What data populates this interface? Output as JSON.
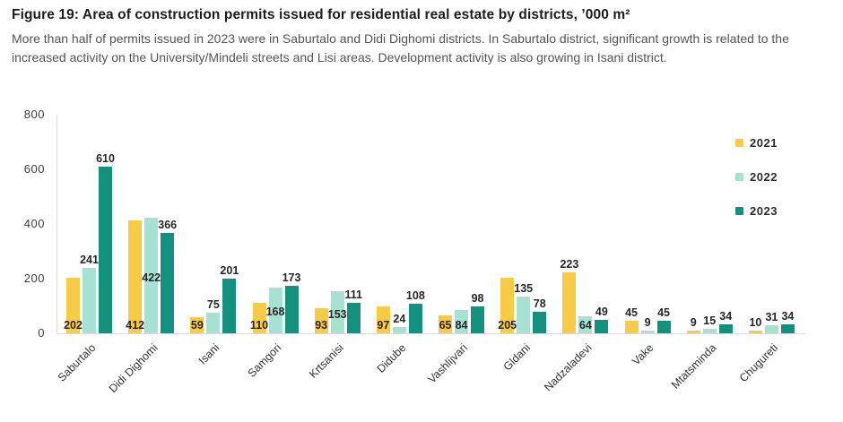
{
  "figure": {
    "title": "Figure 19: Area of construction permits issued for residential real estate by districts, ’000 m²",
    "subtitle": "More than half of permits issued in 2023 were in Saburtalo and Didi Dighomi districts. In Saburtalo district, significant growth is related to the increased activity on the University/Mindeli streets and Lisi areas. Development activity is also growing in Isani district."
  },
  "chart_data": {
    "type": "bar",
    "title": "Area of construction permits issued for residential real estate by districts, ’000 m²",
    "xlabel": "",
    "ylabel": "",
    "ylim": [
      0,
      800
    ],
    "yticks": [
      0,
      200,
      400,
      600,
      800
    ],
    "grid": false,
    "legend_position": "right",
    "categories": [
      "Saburtalo",
      "Didi Dighomi",
      "Isani",
      "Samgori",
      "Krtsanisi",
      "Didube",
      "Vashlijvari",
      "Gldani",
      "Nadzaladevi",
      "Vake",
      "Mtatsminda",
      "Chugureti"
    ],
    "series": [
      {
        "name": "2021",
        "color": "#F7CB46",
        "values": [
          202,
          412,
          59,
          110,
          93,
          97,
          65,
          205,
          223,
          45,
          9,
          10
        ],
        "label_pos": [
          "base",
          "base",
          "base",
          "base",
          "base",
          "base",
          "base",
          "base",
          "above",
          "above",
          "above",
          "above"
        ]
      },
      {
        "name": "2022",
        "color": "#A7E1D3",
        "values": [
          241,
          422,
          75,
          168,
          153,
          24,
          84,
          135,
          64,
          9,
          15,
          31
        ],
        "label_pos": [
          "above",
          "mid",
          "above",
          "mid",
          "mid",
          "above",
          "base",
          "above",
          "base",
          "above",
          "above",
          "above"
        ]
      },
      {
        "name": "2023",
        "color": "#14917E",
        "values": [
          610,
          366,
          201,
          173,
          111,
          108,
          98,
          78,
          49,
          45,
          34,
          34
        ],
        "label_pos": [
          "above",
          "above",
          "above",
          "above",
          "above",
          "above",
          "above",
          "above",
          "above",
          "above",
          "above",
          "above"
        ]
      }
    ]
  }
}
